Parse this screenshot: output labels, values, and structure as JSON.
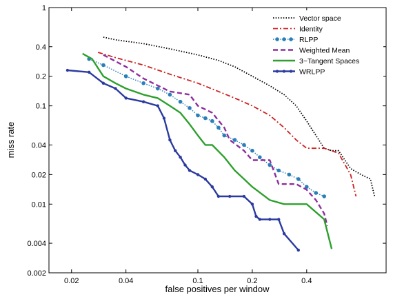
{
  "chart_data": {
    "type": "line",
    "title": "",
    "xlabel": "false positives per window",
    "ylabel": "miss rate",
    "xscale": "log",
    "yscale": "log",
    "xlim": [
      0.015,
      1.1
    ],
    "ylim": [
      0.002,
      1
    ],
    "xticks": [
      0.02,
      0.04,
      0.1,
      0.2,
      0.4
    ],
    "xtick_labels": [
      "0.02",
      "0.04",
      "0.1",
      "0.2",
      "0.4"
    ],
    "yticks": [
      0.002,
      0.004,
      0.01,
      0.02,
      0.04,
      0.1,
      0.2,
      0.4,
      1
    ],
    "ytick_labels": [
      "0.002",
      "0.004",
      "0.01",
      "0.02",
      "0.04",
      "0.1",
      "0.2",
      "0.4",
      "1"
    ],
    "grid": false,
    "legend_position": "top-right",
    "series": [
      {
        "name": "Vector space",
        "color": "#000000",
        "style": "dotted",
        "x": [
          0.03,
          0.035,
          0.05,
          0.07,
          0.1,
          0.13,
          0.16,
          0.2,
          0.25,
          0.3,
          0.35,
          0.4,
          0.45,
          0.5,
          0.55,
          0.6,
          0.7,
          0.8,
          0.9,
          0.95
        ],
        "y": [
          0.5,
          0.47,
          0.43,
          0.38,
          0.33,
          0.29,
          0.25,
          0.2,
          0.16,
          0.13,
          0.1,
          0.07,
          0.05,
          0.037,
          0.035,
          0.035,
          0.023,
          0.02,
          0.018,
          0.012
        ]
      },
      {
        "name": "Identity",
        "color": "#cc2222",
        "style": "dashdot",
        "x": [
          0.028,
          0.035,
          0.05,
          0.07,
          0.1,
          0.13,
          0.16,
          0.2,
          0.25,
          0.3,
          0.35,
          0.4,
          0.5,
          0.6,
          0.7,
          0.75
        ],
        "y": [
          0.35,
          0.31,
          0.26,
          0.21,
          0.17,
          0.14,
          0.12,
          0.1,
          0.08,
          0.06,
          0.045,
          0.037,
          0.037,
          0.033,
          0.02,
          0.012
        ]
      },
      {
        "name": "RLPP",
        "color": "#2a7fb8",
        "style": "dotted-markers",
        "x": [
          0.025,
          0.03,
          0.04,
          0.05,
          0.06,
          0.07,
          0.08,
          0.09,
          0.1,
          0.11,
          0.12,
          0.13,
          0.14,
          0.16,
          0.18,
          0.2,
          0.22,
          0.25,
          0.28,
          0.32,
          0.36,
          0.4,
          0.45,
          0.5
        ],
        "y": [
          0.3,
          0.26,
          0.2,
          0.17,
          0.15,
          0.13,
          0.11,
          0.095,
          0.08,
          0.075,
          0.07,
          0.06,
          0.05,
          0.045,
          0.04,
          0.035,
          0.03,
          0.025,
          0.022,
          0.02,
          0.018,
          0.015,
          0.013,
          0.012
        ]
      },
      {
        "name": "Weighted Mean",
        "color": "#8e2e9e",
        "style": "dashed",
        "x": [
          0.03,
          0.04,
          0.05,
          0.07,
          0.09,
          0.1,
          0.12,
          0.14,
          0.15,
          0.18,
          0.2,
          0.25,
          0.28,
          0.35,
          0.4,
          0.45,
          0.5,
          0.52
        ],
        "y": [
          0.33,
          0.25,
          0.19,
          0.14,
          0.13,
          0.1,
          0.085,
          0.06,
          0.045,
          0.035,
          0.028,
          0.028,
          0.016,
          0.016,
          0.014,
          0.011,
          0.008,
          0.006
        ]
      },
      {
        "name": "3−Tangent Spaces",
        "color": "#2ca02c",
        "style": "solid",
        "x": [
          0.023,
          0.026,
          0.03,
          0.035,
          0.04,
          0.05,
          0.06,
          0.07,
          0.08,
          0.09,
          0.1,
          0.11,
          0.12,
          0.14,
          0.16,
          0.18,
          0.2,
          0.25,
          0.3,
          0.4,
          0.5,
          0.55
        ],
        "y": [
          0.34,
          0.3,
          0.2,
          0.17,
          0.15,
          0.13,
          0.12,
          0.1,
          0.085,
          0.065,
          0.05,
          0.04,
          0.04,
          0.03,
          0.022,
          0.018,
          0.015,
          0.011,
          0.01,
          0.01,
          0.007,
          0.0035
        ]
      },
      {
        "name": "WRLPP",
        "color": "#2a3a9e",
        "style": "solid-markers",
        "x": [
          0.019,
          0.025,
          0.03,
          0.035,
          0.04,
          0.05,
          0.06,
          0.065,
          0.07,
          0.075,
          0.08,
          0.085,
          0.09,
          0.1,
          0.11,
          0.12,
          0.13,
          0.15,
          0.18,
          0.2,
          0.21,
          0.22,
          0.25,
          0.28,
          0.3,
          0.36
        ],
        "y": [
          0.23,
          0.22,
          0.17,
          0.15,
          0.12,
          0.11,
          0.1,
          0.075,
          0.045,
          0.035,
          0.03,
          0.025,
          0.022,
          0.02,
          0.018,
          0.015,
          0.012,
          0.012,
          0.012,
          0.01,
          0.0075,
          0.007,
          0.007,
          0.007,
          0.005,
          0.0034
        ]
      }
    ]
  }
}
